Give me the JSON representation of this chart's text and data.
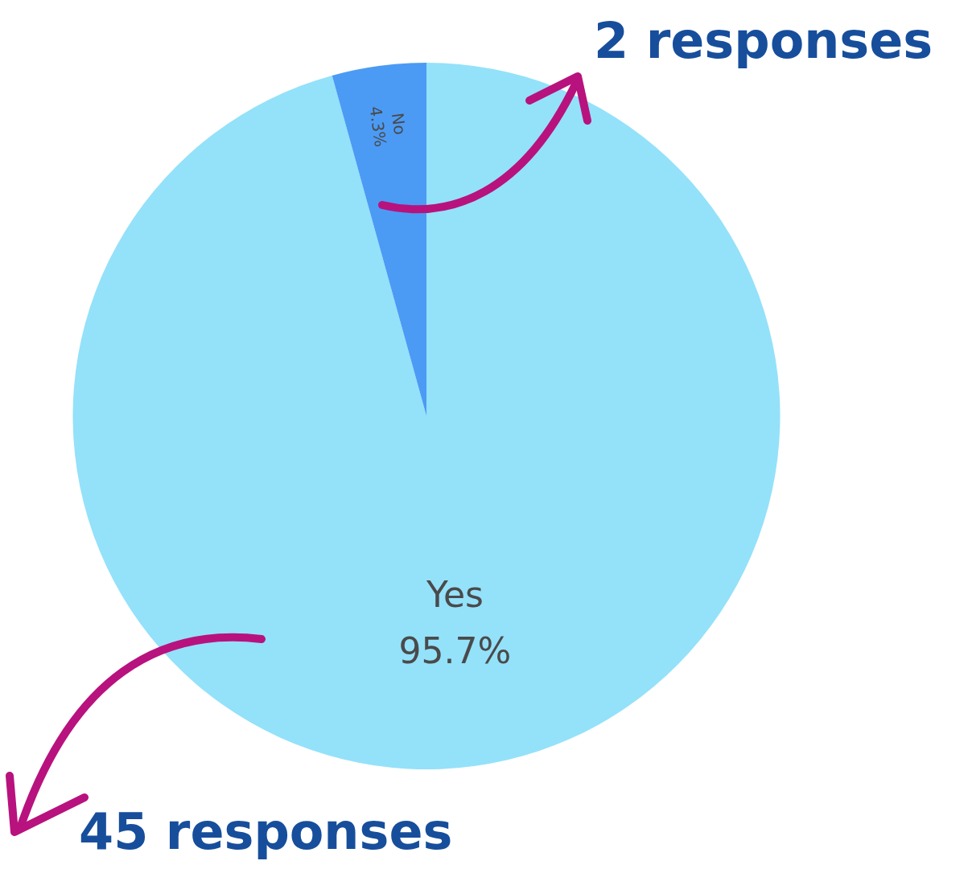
{
  "chart_data": {
    "type": "pie",
    "categories": [
      "Yes",
      "No"
    ],
    "values": [
      95.7,
      4.3
    ],
    "colors": [
      "#94e1fa",
      "#4b9bf5"
    ],
    "value_labels": [
      "95.7%",
      "4.3%"
    ],
    "legend": false,
    "annotations": [
      "2 responses",
      "45 responses"
    ]
  }
}
